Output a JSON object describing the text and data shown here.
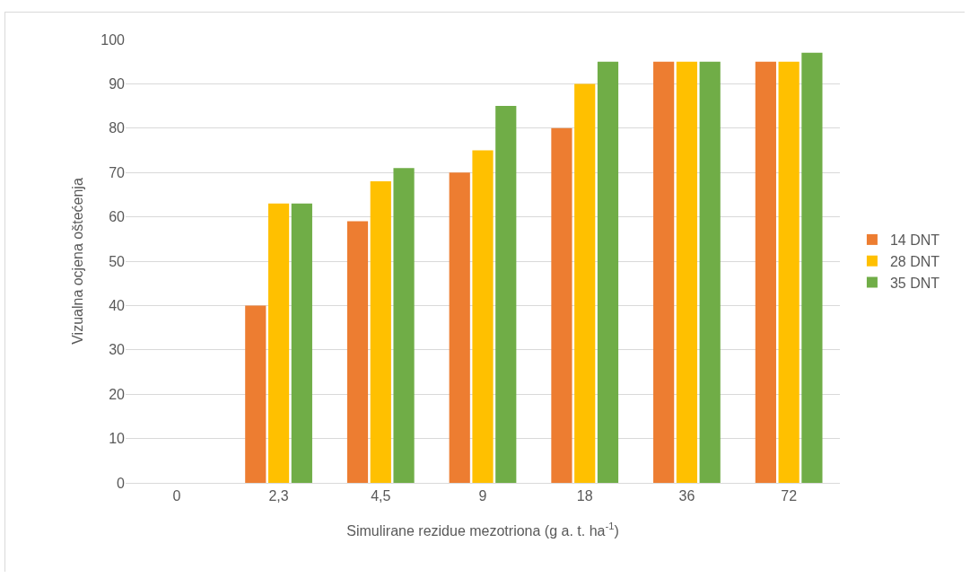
{
  "chart_data": {
    "type": "bar",
    "xlabel": "Simulirane rezidue mezotriona (g a. t. ha$^{-1}$)",
    "ylabel": "Vizualna ocjena oštećenja",
    "categories": [
      "0",
      "2,3",
      "4,5",
      "9",
      "18",
      "36",
      "72"
    ],
    "series": [
      {
        "name": "14 DNT",
        "color": "#ed7d31",
        "values": [
          0,
          40,
          59,
          70,
          80,
          95,
          95
        ]
      },
      {
        "name": "28 DNT",
        "color": "#ffc000",
        "values": [
          0,
          63,
          68,
          75,
          90,
          95,
          95
        ]
      },
      {
        "name": "35 DNT",
        "color": "#70ad47",
        "values": [
          0,
          63,
          71,
          85,
          95,
          95,
          97
        ]
      }
    ],
    "ylim": [
      0,
      100
    ],
    "yticks": [
      0,
      10,
      20,
      30,
      40,
      50,
      60,
      70,
      80,
      90,
      100
    ],
    "grid": "y",
    "legend": "right"
  }
}
